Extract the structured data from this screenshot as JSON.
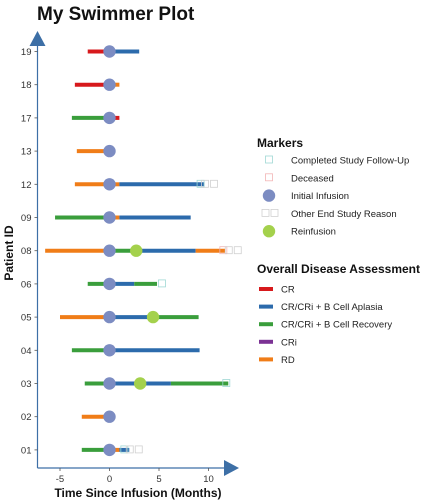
{
  "chart_data": {
    "type": "swimmer",
    "title": "My Swimmer Plot",
    "xlabel": "Time Since Infusion (Months)",
    "ylabel": "Patient ID",
    "xlim": [
      -7,
      14
    ],
    "xticks": [
      -5,
      0,
      5,
      10
    ],
    "patients": [
      "01",
      "02",
      "03",
      "04",
      "05",
      "06",
      "08",
      "09",
      "12",
      "13",
      "17",
      "18",
      "19"
    ],
    "status_colors": {
      "CR": "#d7191c",
      "CR/CRi + B Cell Aplasia": "#2c6bac",
      "CR/CRi + B Cell Recovery": "#3a9e3c",
      "CRi": "#7b3294",
      "RD": "#f07d18"
    },
    "lanes": [
      {
        "id": "01",
        "segments": [
          {
            "start": -2.8,
            "end": 0,
            "status": "CR/CRi + B Cell Recovery"
          },
          {
            "start": 0,
            "end": 1.0,
            "status": "RD"
          },
          {
            "start": 1.0,
            "end": 2.0,
            "status": "CR/CRi + B Cell Aplasia"
          }
        ],
        "markers": [
          {
            "x": 0,
            "type": "Initial Infusion"
          },
          {
            "x": 1.5,
            "type": "Completed Study Follow-Up"
          },
          {
            "x": 2.5,
            "type": "Other End Study Reason"
          }
        ]
      },
      {
        "id": "02",
        "segments": [
          {
            "start": -2.8,
            "end": 0,
            "status": "RD"
          }
        ],
        "markers": [
          {
            "x": 0,
            "type": "Initial Infusion"
          }
        ]
      },
      {
        "id": "03",
        "segments": [
          {
            "start": -2.5,
            "end": 0,
            "status": "CR/CRi + B Cell Recovery"
          },
          {
            "start": 0,
            "end": 6.2,
            "status": "CR/CRi + B Cell Aplasia"
          },
          {
            "start": 6.2,
            "end": 12.0,
            "status": "CR/CRi + B Cell Recovery"
          }
        ],
        "markers": [
          {
            "x": 0,
            "type": "Initial Infusion"
          },
          {
            "x": 3.1,
            "type": "Reinfusion"
          },
          {
            "x": 11.8,
            "type": "Completed Study Follow-Up"
          }
        ]
      },
      {
        "id": "04",
        "segments": [
          {
            "start": -3.8,
            "end": 0,
            "status": "CR/CRi + B Cell Recovery"
          },
          {
            "start": 0,
            "end": 9.1,
            "status": "CR/CRi + B Cell Aplasia"
          }
        ],
        "markers": [
          {
            "x": 0,
            "type": "Initial Infusion"
          }
        ]
      },
      {
        "id": "05",
        "segments": [
          {
            "start": -5.0,
            "end": 0,
            "status": "RD"
          },
          {
            "start": 0,
            "end": 4.4,
            "status": "CR/CRi + B Cell Aplasia"
          },
          {
            "start": 4.4,
            "end": 9.0,
            "status": "CR/CRi + B Cell Recovery"
          }
        ],
        "markers": [
          {
            "x": 0,
            "type": "Initial Infusion"
          },
          {
            "x": 4.4,
            "type": "Reinfusion"
          }
        ]
      },
      {
        "id": "06",
        "segments": [
          {
            "start": -2.2,
            "end": 0,
            "status": "CR/CRi + B Cell Recovery"
          },
          {
            "start": 0,
            "end": 2.5,
            "status": "CR/CRi + B Cell Aplasia"
          },
          {
            "start": 2.5,
            "end": 4.8,
            "status": "CR/CRi + B Cell Recovery"
          }
        ],
        "markers": [
          {
            "x": 0,
            "type": "Initial Infusion"
          },
          {
            "x": 5.3,
            "type": "Completed Study Follow-Up"
          }
        ]
      },
      {
        "id": "08",
        "segments": [
          {
            "start": -6.5,
            "end": 0,
            "status": "RD"
          },
          {
            "start": 0,
            "end": 2.7,
            "status": "CR/CRi + B Cell Recovery"
          },
          {
            "start": 2.7,
            "end": 8.7,
            "status": "CR/CRi + B Cell Aplasia"
          },
          {
            "start": 8.7,
            "end": 11.7,
            "status": "RD"
          }
        ],
        "markers": [
          {
            "x": 0,
            "type": "Initial Infusion"
          },
          {
            "x": 2.7,
            "type": "Reinfusion"
          },
          {
            "x": 11.5,
            "type": "Deceased"
          },
          {
            "x": 12.5,
            "type": "Other End Study Reason"
          }
        ]
      },
      {
        "id": "09",
        "segments": [
          {
            "start": -5.5,
            "end": 0,
            "status": "CR/CRi + B Cell Recovery"
          },
          {
            "start": 0,
            "end": 1.0,
            "status": "RD"
          },
          {
            "start": 1.0,
            "end": 8.2,
            "status": "CR/CRi + B Cell Aplasia"
          }
        ],
        "markers": [
          {
            "x": 0,
            "type": "Initial Infusion"
          }
        ]
      },
      {
        "id": "12",
        "segments": [
          {
            "start": -3.5,
            "end": 0,
            "status": "RD"
          },
          {
            "start": 0,
            "end": 1.0,
            "status": "RD"
          },
          {
            "start": 1.0,
            "end": 9.6,
            "status": "CR/CRi + B Cell Aplasia"
          }
        ],
        "markers": [
          {
            "x": 0,
            "type": "Initial Infusion"
          },
          {
            "x": 9.2,
            "type": "Completed Study Follow-Up"
          },
          {
            "x": 10.1,
            "type": "Other End Study Reason"
          }
        ]
      },
      {
        "id": "13",
        "segments": [
          {
            "start": -3.3,
            "end": 0,
            "status": "RD"
          }
        ],
        "markers": [
          {
            "x": 0,
            "type": "Initial Infusion"
          }
        ]
      },
      {
        "id": "17",
        "segments": [
          {
            "start": -3.8,
            "end": 0,
            "status": "CR/CRi + B Cell Recovery"
          },
          {
            "start": 0,
            "end": 1.0,
            "status": "CR"
          }
        ],
        "markers": [
          {
            "x": 0,
            "type": "Initial Infusion"
          }
        ]
      },
      {
        "id": "18",
        "segments": [
          {
            "start": -3.5,
            "end": 0,
            "status": "CR"
          },
          {
            "start": 0,
            "end": 1.0,
            "status": "RD"
          }
        ],
        "markers": [
          {
            "x": 0,
            "type": "Initial Infusion"
          }
        ]
      },
      {
        "id": "19",
        "segments": [
          {
            "start": -2.2,
            "end": 0,
            "status": "CR"
          },
          {
            "start": 0,
            "end": 3.0,
            "status": "CR/CRi + B Cell Aplasia"
          }
        ],
        "markers": [
          {
            "x": 0,
            "type": "Initial Infusion"
          }
        ]
      }
    ],
    "legend_markers_title": "Markers",
    "legend_markers": [
      {
        "label": "Completed Study Follow-Up",
        "type": "Completed Study Follow-Up"
      },
      {
        "label": "Deceased",
        "type": "Deceased"
      },
      {
        "label": "Initial Infusion",
        "type": "Initial Infusion"
      },
      {
        "label": "Other End Study Reason",
        "type": "Other End Study Reason"
      },
      {
        "label": "Reinfusion",
        "type": "Reinfusion"
      }
    ],
    "legend_status_title": "Overall Disease Assessment",
    "legend_status": [
      "CR",
      "CR/CRi + B Cell Aplasia",
      "CR/CRi + B Cell Recovery",
      "CRi",
      "RD"
    ],
    "marker_colors": {
      "Initial Infusion": "#7c8cc2",
      "Reinfusion": "#a4d14c",
      "Completed Study Follow-Up": "#9fd8d4",
      "Deceased": "#f2b4b4",
      "Other End Study Reason": "#d0d0d0",
      "axis": "#3d6fa6"
    }
  }
}
